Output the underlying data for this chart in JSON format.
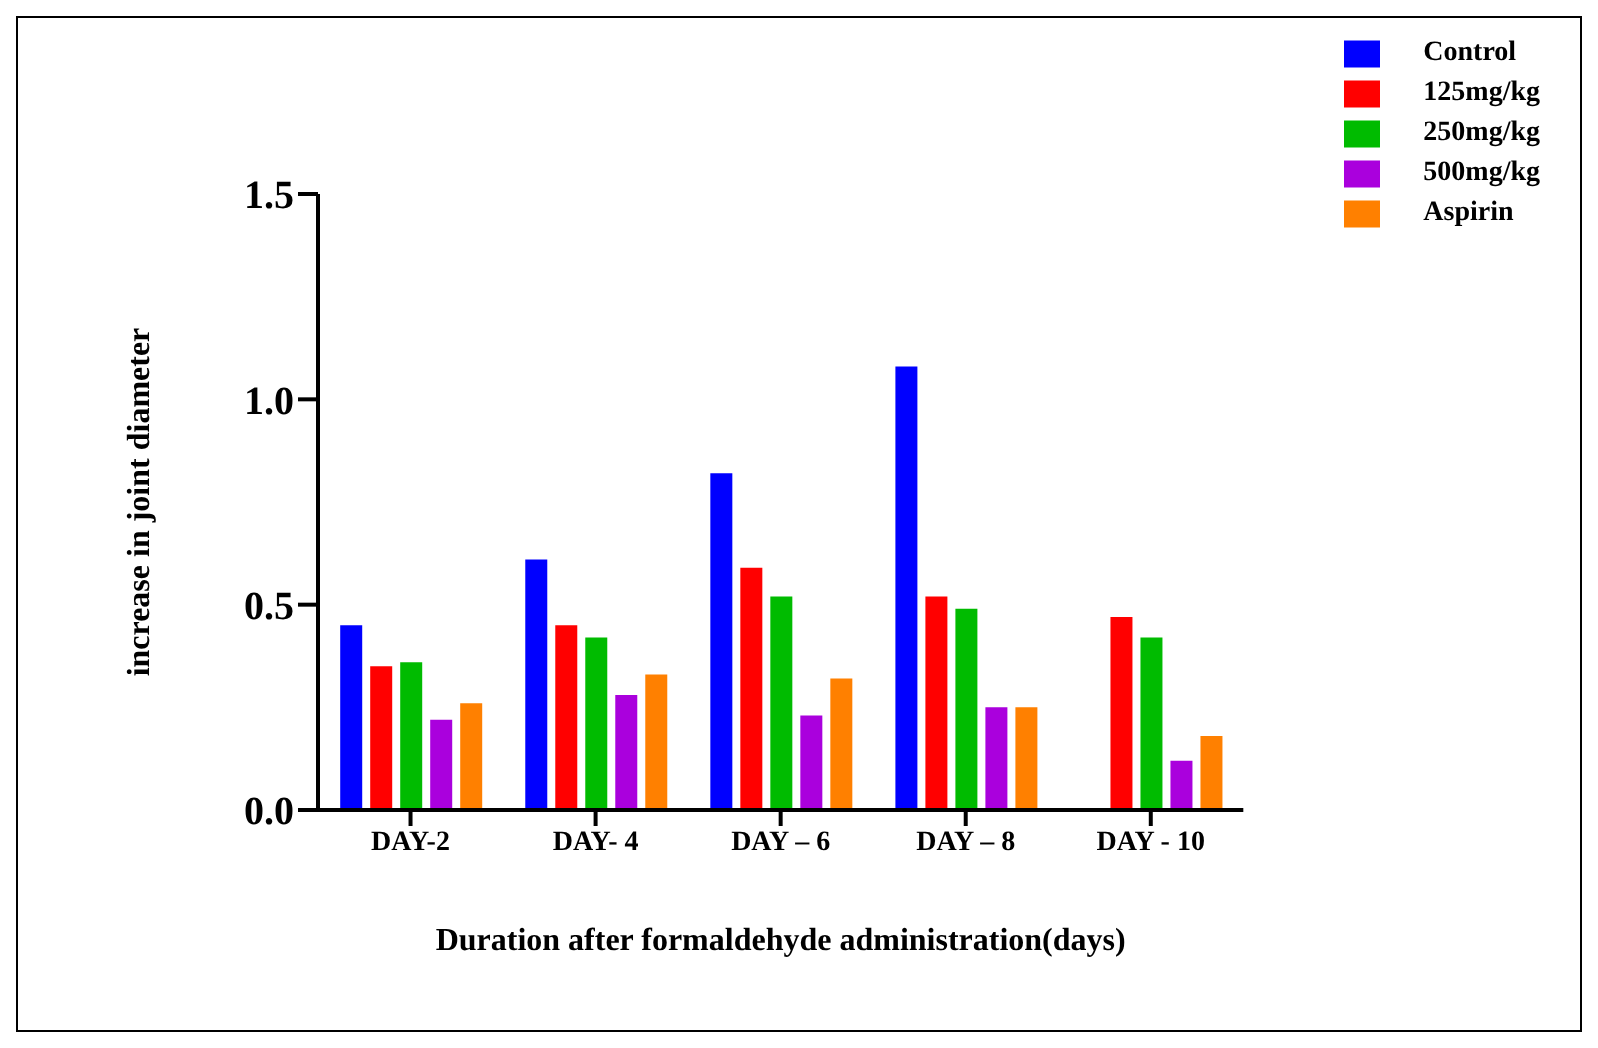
{
  "chart_data": {
    "type": "bar",
    "xlabel": "Duration after formaldehyde administration(days)",
    "ylabel": "increase in joint diameter",
    "categories": [
      "DAY-2",
      "DAY- 4",
      "DAY – 6",
      "DAY – 8",
      "DAY - 10"
    ],
    "series": [
      {
        "name": "Control",
        "color": "#0000ff",
        "values": [
          0.45,
          0.61,
          0.82,
          1.08,
          null
        ]
      },
      {
        "name": "125mg/kg",
        "color": "#ff0000",
        "values": [
          0.35,
          0.45,
          0.59,
          0.52,
          0.47
        ]
      },
      {
        "name": "250mg/kg",
        "color": "#00bb00",
        "values": [
          0.36,
          0.42,
          0.52,
          0.49,
          0.42
        ]
      },
      {
        "name": "500mg/kg",
        "color": "#aa00dd",
        "values": [
          0.22,
          0.28,
          0.23,
          0.25,
          0.12
        ]
      },
      {
        "name": "Aspirin",
        "color": "#ff8000",
        "values": [
          0.26,
          0.33,
          0.32,
          0.25,
          0.18
        ]
      }
    ],
    "ylim": [
      0,
      1.5
    ],
    "yticks": [
      {
        "value": 0,
        "label": "0.0"
      },
      0.5,
      {
        "value": 1,
        "label": "1.0"
      },
      1.5
    ],
    "grid": false,
    "legend": "top right"
  }
}
